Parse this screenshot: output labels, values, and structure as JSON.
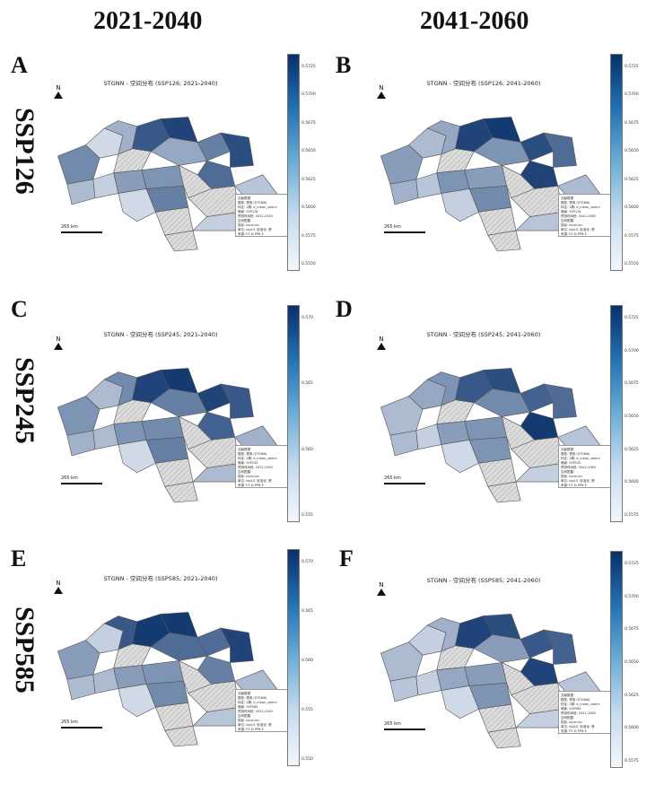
{
  "headers": {
    "col1": "2021-2040",
    "col2": "2041-2060"
  },
  "rows": [
    "SSP126",
    "SSP245",
    "SSP585"
  ],
  "panels": [
    {
      "letter": "A",
      "title": "STGNN - 空间分布 (SSP126; 2021-2040)",
      "scale": "265 km",
      "north": "N",
      "ticks": [
        "0.5725",
        "0.5700",
        "0.5675",
        "0.5650",
        "0.5625",
        "0.5600",
        "0.5575",
        "0.5550"
      ],
      "legend": [
        "文献数据",
        "模型: 预测 (STGNN)",
        "特征: 1期: d_mean_samm",
        "情景: SSP126",
        "预测时间段: 2021-2040",
        "空间配置:",
        "投影: local.lon",
        "单位: log10, 标准化: 是",
        "来源: P3 D-PPN E"
      ],
      "regions": [
        0.55,
        0.15,
        0.35,
        0.8,
        0.9,
        0.4,
        0.25,
        0.6,
        0.85,
        0.7,
        0.3,
        0.2,
        0.45,
        0.5,
        0.35,
        0.25,
        0.6,
        0.4,
        0.3,
        0.2,
        0.15,
        0.35
      ]
    },
    {
      "letter": "B",
      "title": "STGNN - 空间分布 (SSP126; 2041-2060)",
      "scale": "265 km",
      "north": "N",
      "ticks": [
        "0.5725",
        "0.5700",
        "0.5675",
        "0.5650",
        "0.5625",
        "0.5600",
        "0.5575",
        "0.5550"
      ],
      "legend": [
        "文献数据",
        "模型: 预测 (STGNN)",
        "特征: 1期: d_mean_samm",
        "情景: SSP126",
        "预测时间段: 2041-2060",
        "空间配置:",
        "投影: local.lon",
        "单位: log10, 标准化: 是",
        "来源: P3 D-PPN E"
      ],
      "regions": [
        0.45,
        0.3,
        0.4,
        0.9,
        0.95,
        0.5,
        0.3,
        0.85,
        0.7,
        0.9,
        0.35,
        0.25,
        0.5,
        0.45,
        0.4,
        0.3,
        0.55,
        0.45,
        0.35,
        0.25,
        0.2,
        0.4
      ]
    },
    {
      "letter": "C",
      "title": "STGNN - 空间分布 (SSP245; 2021-2040)",
      "scale": "265 km",
      "north": "N",
      "ticks": [
        "0.570",
        "0.565",
        "0.560",
        "0.555"
      ],
      "legend": [
        "文献数据",
        "模型: 预测 (STGNN)",
        "特征: 1期: d_mean_samm",
        "情景: SSP245",
        "预测时间段: 2021-2040",
        "空间配置:",
        "投影: local.lon",
        "单位: log10, 标准化: 是",
        "来源: P3 D-PPN E"
      ],
      "regions": [
        0.5,
        0.3,
        0.55,
        0.9,
        0.95,
        0.6,
        0.4,
        0.9,
        0.8,
        0.75,
        0.35,
        0.3,
        0.5,
        0.55,
        0.4,
        0.35,
        0.6,
        0.5,
        0.35,
        0.3,
        0.15,
        0.4
      ]
    },
    {
      "letter": "D",
      "title": "STGNN - 空间分布 (SSP245; 2041-2060)",
      "scale": "265 km",
      "north": "N",
      "ticks": [
        "0.5725",
        "0.5700",
        "0.5675",
        "0.5650",
        "0.5625",
        "0.5600",
        "0.5575"
      ],
      "legend": [
        "文献数据",
        "模型: 预测 (STGNN)",
        "特征: 1期: d_mean_samm",
        "情景: SSP245",
        "预测时间段: 2041-2060",
        "空间配置:",
        "投影: local.lon",
        "单位: log10, 标准化: 是",
        "来源: P3 D-PPN E"
      ],
      "regions": [
        0.3,
        0.4,
        0.5,
        0.8,
        0.85,
        0.55,
        0.25,
        0.75,
        0.7,
        0.95,
        0.3,
        0.2,
        0.45,
        0.5,
        0.35,
        0.25,
        0.5,
        0.45,
        0.3,
        0.2,
        0.15,
        0.35
      ]
    },
    {
      "letter": "E",
      "title": "STGNN - 空间分布 (SSP585; 2021-2040)",
      "scale": "265 km",
      "north": "N",
      "ticks": [
        "0.570",
        "0.565",
        "0.560",
        "0.555",
        "0.550"
      ],
      "legend": [
        "文献数据",
        "模型: 预测 (STGNN)",
        "特征: 1期: d_mean_samm",
        "情景: SSP585",
        "预测时间段: 2021-2040",
        "空间配置:",
        "投影: local.lon",
        "单位: log10, 标准化: 是",
        "来源: P3 D-PPN E"
      ],
      "regions": [
        0.45,
        0.2,
        0.8,
        0.95,
        0.95,
        0.7,
        0.35,
        0.7,
        0.9,
        0.6,
        0.3,
        0.3,
        0.45,
        0.5,
        0.4,
        0.3,
        0.55,
        0.45,
        0.3,
        0.25,
        0.15,
        0.35
      ]
    },
    {
      "letter": "F",
      "title": "STGNN - 空间分布 (SSP585; 2041-2060)",
      "scale": "265 km",
      "north": "N",
      "ticks": [
        "0.5725",
        "0.5700",
        "0.5675",
        "0.5650",
        "0.5625",
        "0.5600",
        "0.5575"
      ],
      "legend": [
        "文献数据",
        "模型: 预测 (STGNN)",
        "特征: 1期: d_mean_samm",
        "情景: SSP585",
        "预测时间段: 2041-2060",
        "空间配置:",
        "投影: local.lon",
        "单位: log10, 标准化: 是",
        "来源: P3 D-PPN E"
      ],
      "regions": [
        0.3,
        0.2,
        0.35,
        0.9,
        0.85,
        0.45,
        0.25,
        0.8,
        0.75,
        0.9,
        0.25,
        0.2,
        0.4,
        0.45,
        0.3,
        0.25,
        0.5,
        0.4,
        0.3,
        0.2,
        0.15,
        0.3
      ]
    }
  ],
  "colors": {
    "low": "#f3f7fc",
    "high": "#08306b",
    "hatch": "#dcdcdc",
    "border": "#555555"
  }
}
